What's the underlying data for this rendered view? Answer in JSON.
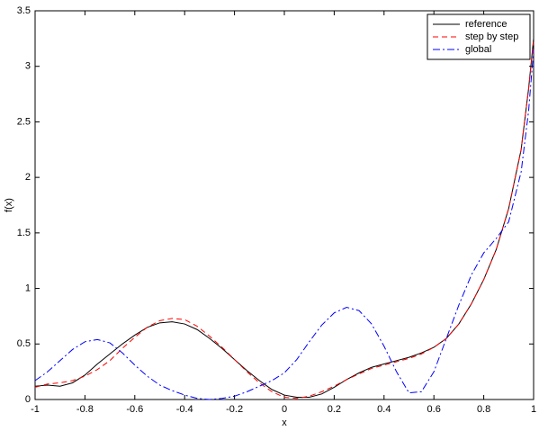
{
  "chart_data": {
    "type": "line",
    "x_label": "x",
    "y_label": "f(x)",
    "x": [
      -1,
      -0.95,
      -0.9,
      -0.85,
      -0.8,
      -0.75,
      -0.7,
      -0.65,
      -0.6,
      -0.55,
      -0.5,
      -0.45,
      -0.4,
      -0.35,
      -0.3,
      -0.25,
      -0.2,
      -0.15,
      -0.1,
      -0.05,
      0,
      0.05,
      0.1,
      0.15,
      0.2,
      0.25,
      0.3,
      0.35,
      0.4,
      0.45,
      0.5,
      0.55,
      0.6,
      0.65,
      0.7,
      0.75,
      0.8,
      0.85,
      0.9,
      0.95,
      0.98,
      1
    ],
    "series": [
      {
        "name": "reference",
        "color": "#000000",
        "dash": "solid",
        "values": [
          0.12,
          0.13,
          0.12,
          0.15,
          0.22,
          0.32,
          0.41,
          0.5,
          0.58,
          0.65,
          0.69,
          0.7,
          0.68,
          0.63,
          0.55,
          0.46,
          0.36,
          0.26,
          0.17,
          0.09,
          0.04,
          0.02,
          0.02,
          0.05,
          0.11,
          0.18,
          0.24,
          0.29,
          0.32,
          0.35,
          0.38,
          0.42,
          0.47,
          0.55,
          0.68,
          0.86,
          1.08,
          1.35,
          1.72,
          2.25,
          2.8,
          3.25
        ]
      },
      {
        "name": "step by step",
        "color": "#ff0000",
        "dash": "dashed",
        "values": [
          0.11,
          0.14,
          0.15,
          0.17,
          0.21,
          0.27,
          0.35,
          0.46,
          0.56,
          0.65,
          0.71,
          0.73,
          0.72,
          0.66,
          0.57,
          0.47,
          0.36,
          0.25,
          0.15,
          0.07,
          0.02,
          0.01,
          0.03,
          0.07,
          0.12,
          0.18,
          0.23,
          0.28,
          0.31,
          0.34,
          0.37,
          0.41,
          0.47,
          0.55,
          0.68,
          0.86,
          1.08,
          1.35,
          1.72,
          2.25,
          2.8,
          3.22
        ]
      },
      {
        "name": "global",
        "color": "#0000ff",
        "dash": "dashdot",
        "values": [
          0.17,
          0.25,
          0.35,
          0.45,
          0.52,
          0.54,
          0.51,
          0.42,
          0.31,
          0.21,
          0.13,
          0.08,
          0.04,
          0.01,
          0,
          0.01,
          0.03,
          0.07,
          0.12,
          0.17,
          0.24,
          0.36,
          0.52,
          0.67,
          0.78,
          0.83,
          0.8,
          0.68,
          0.48,
          0.25,
          0.06,
          0.07,
          0.25,
          0.55,
          0.85,
          1.12,
          1.32,
          1.45,
          1.6,
          2.05,
          2.6,
          3.15
        ]
      }
    ],
    "xlim": [
      -1,
      1
    ],
    "ylim": [
      0,
      3.5
    ],
    "xticks": [
      -1,
      -0.8,
      -0.6,
      -0.4,
      -0.2,
      0,
      0.2,
      0.4,
      0.6,
      0.8,
      1
    ],
    "yticks": [
      0,
      0.5,
      1,
      1.5,
      2,
      2.5,
      3,
      3.5
    ],
    "grid": false,
    "legend": "top-right"
  }
}
